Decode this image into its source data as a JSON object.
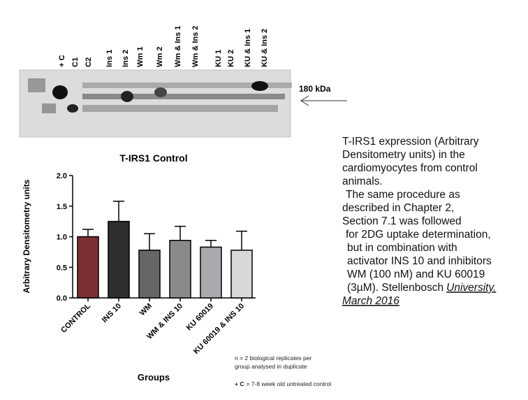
{
  "blot": {
    "lanes": [
      "+ C",
      "C1",
      "C2",
      "Ins 1",
      "Ins 2",
      "Wm 1",
      "Wm 2",
      "Wm & Ins 1",
      "Wm & Ins 2",
      "KU 1",
      "KU 2",
      "KU & Ins 1",
      "KU & Ins 2"
    ],
    "marker": "180 kDa"
  },
  "chart_data": {
    "type": "bar",
    "title": "T-IRS1 Control",
    "y_label": "Arbitrary Densitometry units",
    "x_label": "Groups",
    "categories": [
      "CONTROL",
      "INS 10",
      "WM",
      "WM & INS 10",
      "KU 60019",
      "KU 60019 & INS 10"
    ],
    "series": [
      {
        "values": [
          1.0,
          1.25,
          0.78,
          0.94,
          0.83,
          0.78
        ],
        "errors": [
          0.12,
          0.33,
          0.27,
          0.23,
          0.11,
          0.31
        ],
        "colors": [
          "#7b2f35",
          "#2e2e2e",
          "#666666",
          "#8a8a8a",
          "#a9a9ae",
          "#d8d8d8"
        ]
      }
    ],
    "ylim": [
      0,
      2.0
    ],
    "yticks": [
      {
        "value": 0,
        "label": "0.0"
      },
      {
        "value": 0.5,
        "label": "0.5"
      },
      {
        "value": 1.0,
        "label": "1.0"
      },
      {
        "value": 1.5,
        "label": "1.5"
      },
      {
        "value": 2.0,
        "label": "2.0"
      }
    ]
  },
  "notes": {
    "replicates": [
      "n = 2 biological replicates per",
      "group analysed in duplicate"
    ],
    "control_key": "+ C",
    "control_text": "= 7-8 week old untreated control"
  },
  "caption": {
    "lines": [
      "T-IRS1 expression (Arbitrary",
      "Densitometry units) in the",
      "cardiomyocytes from control",
      "animals.",
      "The same procedure as",
      "described in Chapter 2,",
      "Section 7.1 was followed",
      "for 2DG uptake determination,",
      "but in combination with",
      "activator INS 10 and inhibitors",
      "WM (100 nM) and KU 60019",
      "(3µM). Stellenbosch"
    ],
    "source": [
      "University.",
      "March 2016"
    ]
  }
}
